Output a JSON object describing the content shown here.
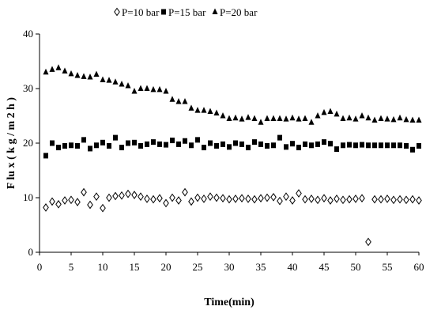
{
  "chart_data": {
    "type": "scatter",
    "xlabel": "Time(min)",
    "ylabel": "F lu x ( k g / m 2 h )",
    "xlim": [
      0,
      60
    ],
    "ylim": [
      0,
      40
    ],
    "xticks": [
      0,
      5,
      10,
      15,
      20,
      25,
      30,
      35,
      40,
      45,
      50,
      55,
      60
    ],
    "yticks": [
      0,
      10,
      20,
      30,
      40
    ],
    "grid": false,
    "legend_position": "top",
    "series": [
      {
        "name": "P=10 bar",
        "marker": "diamond-open",
        "color": "#000000",
        "points": [
          [
            1,
            8.2
          ],
          [
            2,
            9.3
          ],
          [
            3,
            8.8
          ],
          [
            4,
            9.5
          ],
          [
            5,
            9.6
          ],
          [
            6,
            9.2
          ],
          [
            7,
            11.0
          ],
          [
            8,
            8.7
          ],
          [
            9,
            10.2
          ],
          [
            10,
            8.1
          ],
          [
            11,
            10.0
          ],
          [
            12,
            10.3
          ],
          [
            13,
            10.4
          ],
          [
            14,
            10.7
          ],
          [
            15,
            10.5
          ],
          [
            16,
            10.2
          ],
          [
            17,
            9.8
          ],
          [
            18,
            9.7
          ],
          [
            19,
            9.9
          ],
          [
            20,
            9.0
          ],
          [
            21,
            10.0
          ],
          [
            22,
            9.5
          ],
          [
            23,
            11.0
          ],
          [
            24,
            9.3
          ],
          [
            25,
            10.0
          ],
          [
            26,
            9.8
          ],
          [
            27,
            10.2
          ],
          [
            28,
            10.0
          ],
          [
            29,
            9.9
          ],
          [
            30,
            9.7
          ],
          [
            31,
            9.8
          ],
          [
            32,
            9.9
          ],
          [
            33,
            9.8
          ],
          [
            34,
            9.7
          ],
          [
            35,
            9.9
          ],
          [
            36,
            10.0
          ],
          [
            37,
            10.1
          ],
          [
            38,
            9.4
          ],
          [
            39,
            10.2
          ],
          [
            40,
            9.5
          ],
          [
            41,
            10.8
          ],
          [
            42,
            9.7
          ],
          [
            43,
            9.8
          ],
          [
            44,
            9.6
          ],
          [
            45,
            9.9
          ],
          [
            46,
            9.5
          ],
          [
            47,
            9.8
          ],
          [
            48,
            9.6
          ],
          [
            49,
            9.7
          ],
          [
            50,
            9.8
          ],
          [
            51,
            9.9
          ],
          [
            52,
            1.9
          ],
          [
            53,
            9.7
          ],
          [
            54,
            9.7
          ],
          [
            55,
            9.8
          ],
          [
            56,
            9.6
          ],
          [
            57,
            9.7
          ],
          [
            58,
            9.6
          ],
          [
            59,
            9.7
          ],
          [
            60,
            9.5
          ]
        ]
      },
      {
        "name": "P=15 bar",
        "marker": "square-filled",
        "color": "#000000",
        "points": [
          [
            1,
            17.7
          ],
          [
            2,
            20.0
          ],
          [
            3,
            19.2
          ],
          [
            4,
            19.5
          ],
          [
            5,
            19.6
          ],
          [
            6,
            19.5
          ],
          [
            7,
            20.6
          ],
          [
            8,
            19.0
          ],
          [
            9,
            19.6
          ],
          [
            10,
            20.1
          ],
          [
            11,
            19.5
          ],
          [
            12,
            21.0
          ],
          [
            13,
            19.2
          ],
          [
            14,
            20.0
          ],
          [
            15,
            20.1
          ],
          [
            16,
            19.5
          ],
          [
            17,
            19.8
          ],
          [
            18,
            20.2
          ],
          [
            19,
            19.8
          ],
          [
            20,
            19.7
          ],
          [
            21,
            20.5
          ],
          [
            22,
            19.8
          ],
          [
            23,
            20.4
          ],
          [
            24,
            19.6
          ],
          [
            25,
            20.6
          ],
          [
            26,
            19.2
          ],
          [
            27,
            20.0
          ],
          [
            28,
            19.5
          ],
          [
            29,
            19.8
          ],
          [
            30,
            19.3
          ],
          [
            31,
            20.0
          ],
          [
            32,
            19.8
          ],
          [
            33,
            19.2
          ],
          [
            34,
            20.2
          ],
          [
            35,
            19.8
          ],
          [
            36,
            19.5
          ],
          [
            37,
            19.6
          ],
          [
            38,
            21.0
          ],
          [
            39,
            19.3
          ],
          [
            40,
            19.9
          ],
          [
            41,
            19.2
          ],
          [
            42,
            19.8
          ],
          [
            43,
            19.6
          ],
          [
            44,
            19.8
          ],
          [
            45,
            20.2
          ],
          [
            46,
            19.9
          ],
          [
            47,
            18.9
          ],
          [
            48,
            19.6
          ],
          [
            49,
            19.7
          ],
          [
            50,
            19.6
          ],
          [
            51,
            19.7
          ],
          [
            52,
            19.6
          ],
          [
            53,
            19.6
          ],
          [
            54,
            19.6
          ],
          [
            55,
            19.6
          ],
          [
            56,
            19.6
          ],
          [
            57,
            19.6
          ],
          [
            58,
            19.5
          ],
          [
            59,
            18.8
          ],
          [
            60,
            19.5
          ]
        ]
      },
      {
        "name": "P=20 bar",
        "marker": "triangle-filled",
        "color": "#000000",
        "points": [
          [
            1,
            33.0
          ],
          [
            2,
            33.5
          ],
          [
            3,
            33.8
          ],
          [
            4,
            33.2
          ],
          [
            5,
            32.7
          ],
          [
            6,
            32.4
          ],
          [
            7,
            32.2
          ],
          [
            8,
            32.1
          ],
          [
            9,
            32.6
          ],
          [
            10,
            31.6
          ],
          [
            11,
            31.5
          ],
          [
            12,
            31.2
          ],
          [
            13,
            30.8
          ],
          [
            14,
            30.5
          ],
          [
            15,
            29.5
          ],
          [
            16,
            30.0
          ],
          [
            17,
            30.0
          ],
          [
            18,
            29.8
          ],
          [
            19,
            29.8
          ],
          [
            20,
            29.5
          ],
          [
            21,
            28.0
          ],
          [
            22,
            27.6
          ],
          [
            23,
            27.6
          ],
          [
            24,
            26.4
          ],
          [
            25,
            26.0
          ],
          [
            26,
            26.0
          ],
          [
            27,
            25.8
          ],
          [
            28,
            25.5
          ],
          [
            29,
            25.0
          ],
          [
            30,
            24.5
          ],
          [
            31,
            24.6
          ],
          [
            32,
            24.4
          ],
          [
            33,
            24.7
          ],
          [
            34,
            24.5
          ],
          [
            35,
            23.8
          ],
          [
            36,
            24.5
          ],
          [
            37,
            24.5
          ],
          [
            38,
            24.5
          ],
          [
            39,
            24.4
          ],
          [
            40,
            24.6
          ],
          [
            41,
            24.4
          ],
          [
            42,
            24.5
          ],
          [
            43,
            23.8
          ],
          [
            44,
            25.0
          ],
          [
            45,
            25.6
          ],
          [
            46,
            25.8
          ],
          [
            47,
            25.3
          ],
          [
            48,
            24.5
          ],
          [
            49,
            24.6
          ],
          [
            50,
            24.4
          ],
          [
            51,
            25.0
          ],
          [
            52,
            24.6
          ],
          [
            53,
            24.2
          ],
          [
            54,
            24.5
          ],
          [
            55,
            24.4
          ],
          [
            56,
            24.3
          ],
          [
            57,
            24.6
          ],
          [
            58,
            24.3
          ],
          [
            59,
            24.2
          ],
          [
            60,
            24.2
          ]
        ]
      }
    ]
  }
}
